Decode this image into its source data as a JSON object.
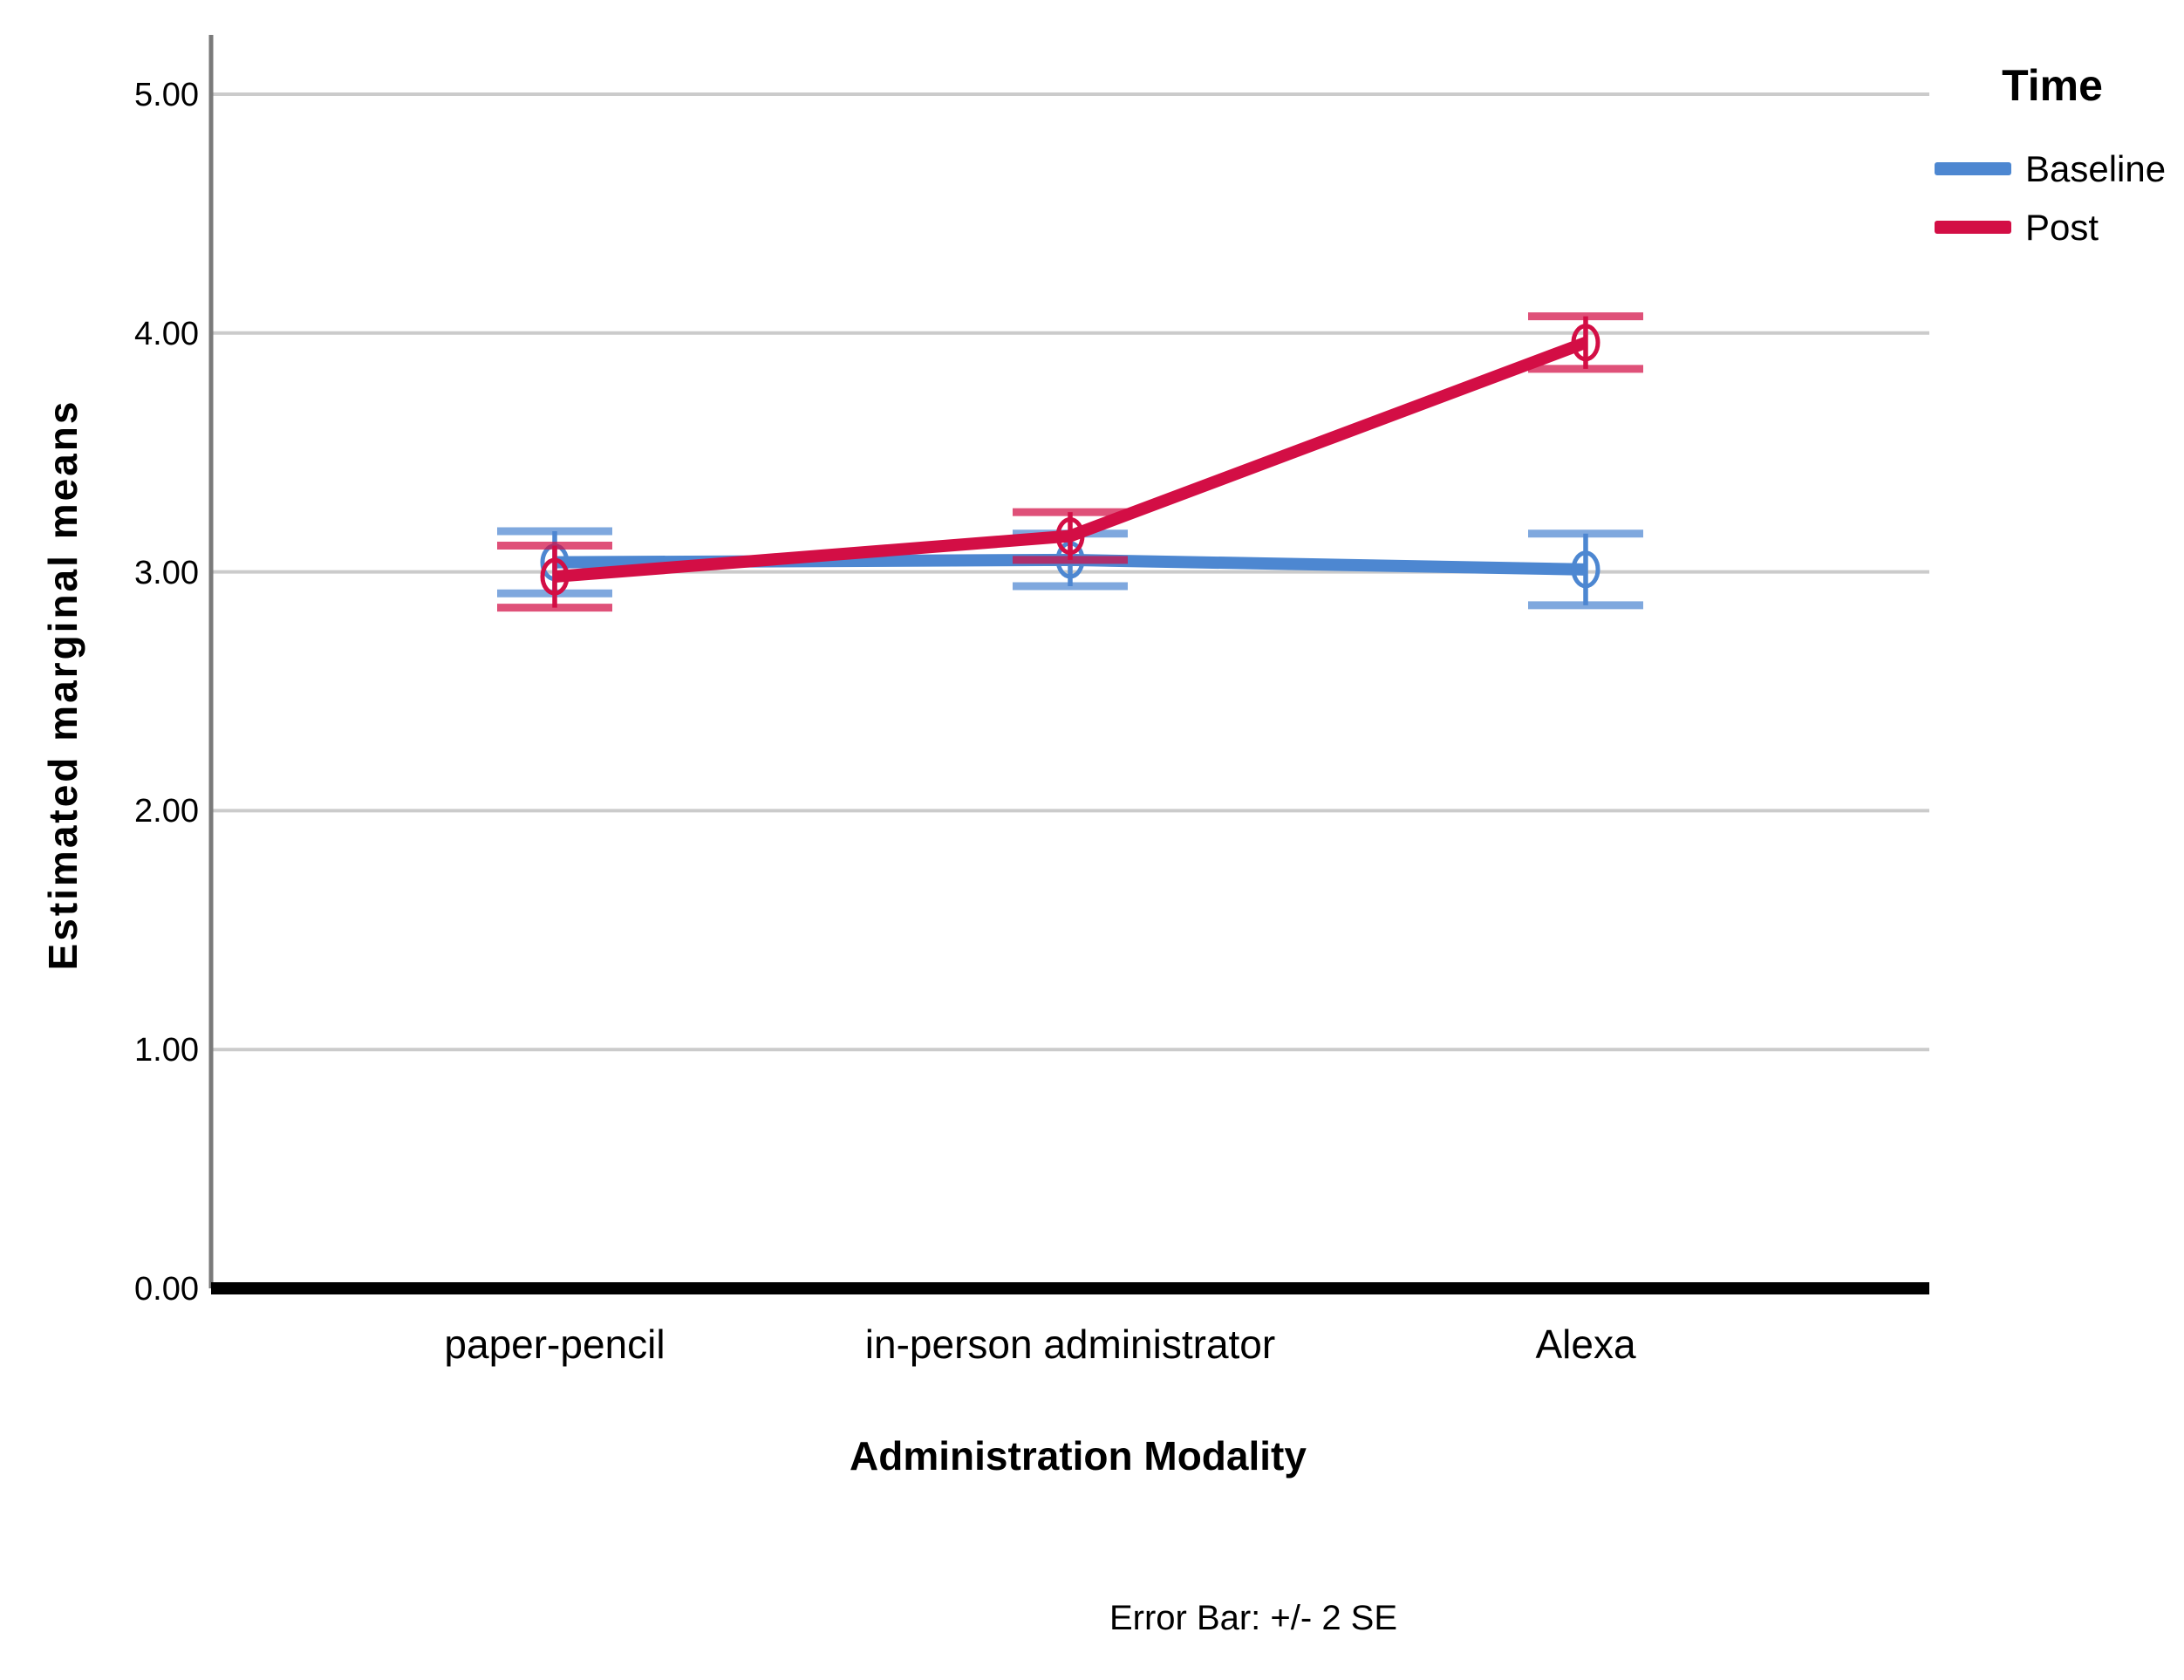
{
  "figure": {
    "caption": "Error Bar: +/- 2 SE"
  },
  "chart_data": {
    "type": "line",
    "title": "",
    "xlabel": "Administration Modality",
    "ylabel": "Estimated marginal means",
    "categories": [
      "paper-pencil",
      "in-person administrator",
      "Alexa"
    ],
    "ytick_labels": [
      "0.00",
      "1.00",
      "2.00",
      "3.00",
      "4.00",
      "5.00"
    ],
    "yticks": [
      0,
      1,
      2,
      3,
      4,
      5
    ],
    "ylim": [
      0,
      5.25
    ],
    "grid": "horizontal",
    "grid_color": "#CBCBCB",
    "axis_color": "#7A7A7A",
    "baseline_axis_color": "#000000",
    "marker": "open-circle",
    "error_bar_note": "+/- 2 SE",
    "legend": {
      "title": "Time",
      "position": "top-right",
      "entries": [
        {
          "label": "Baseline",
          "color": "#4D87D1"
        },
        {
          "label": "Post",
          "color": "#D30E45"
        }
      ]
    },
    "series": [
      {
        "name": "Baseline",
        "color": "#4D87D1",
        "values": [
          3.04,
          3.05,
          3.01
        ],
        "error_2se": [
          0.13,
          0.11,
          0.15
        ]
      },
      {
        "name": "Post",
        "color": "#D30E45",
        "values": [
          2.98,
          3.15,
          3.96
        ],
        "error_2se": [
          0.13,
          0.1,
          0.11
        ]
      }
    ]
  }
}
